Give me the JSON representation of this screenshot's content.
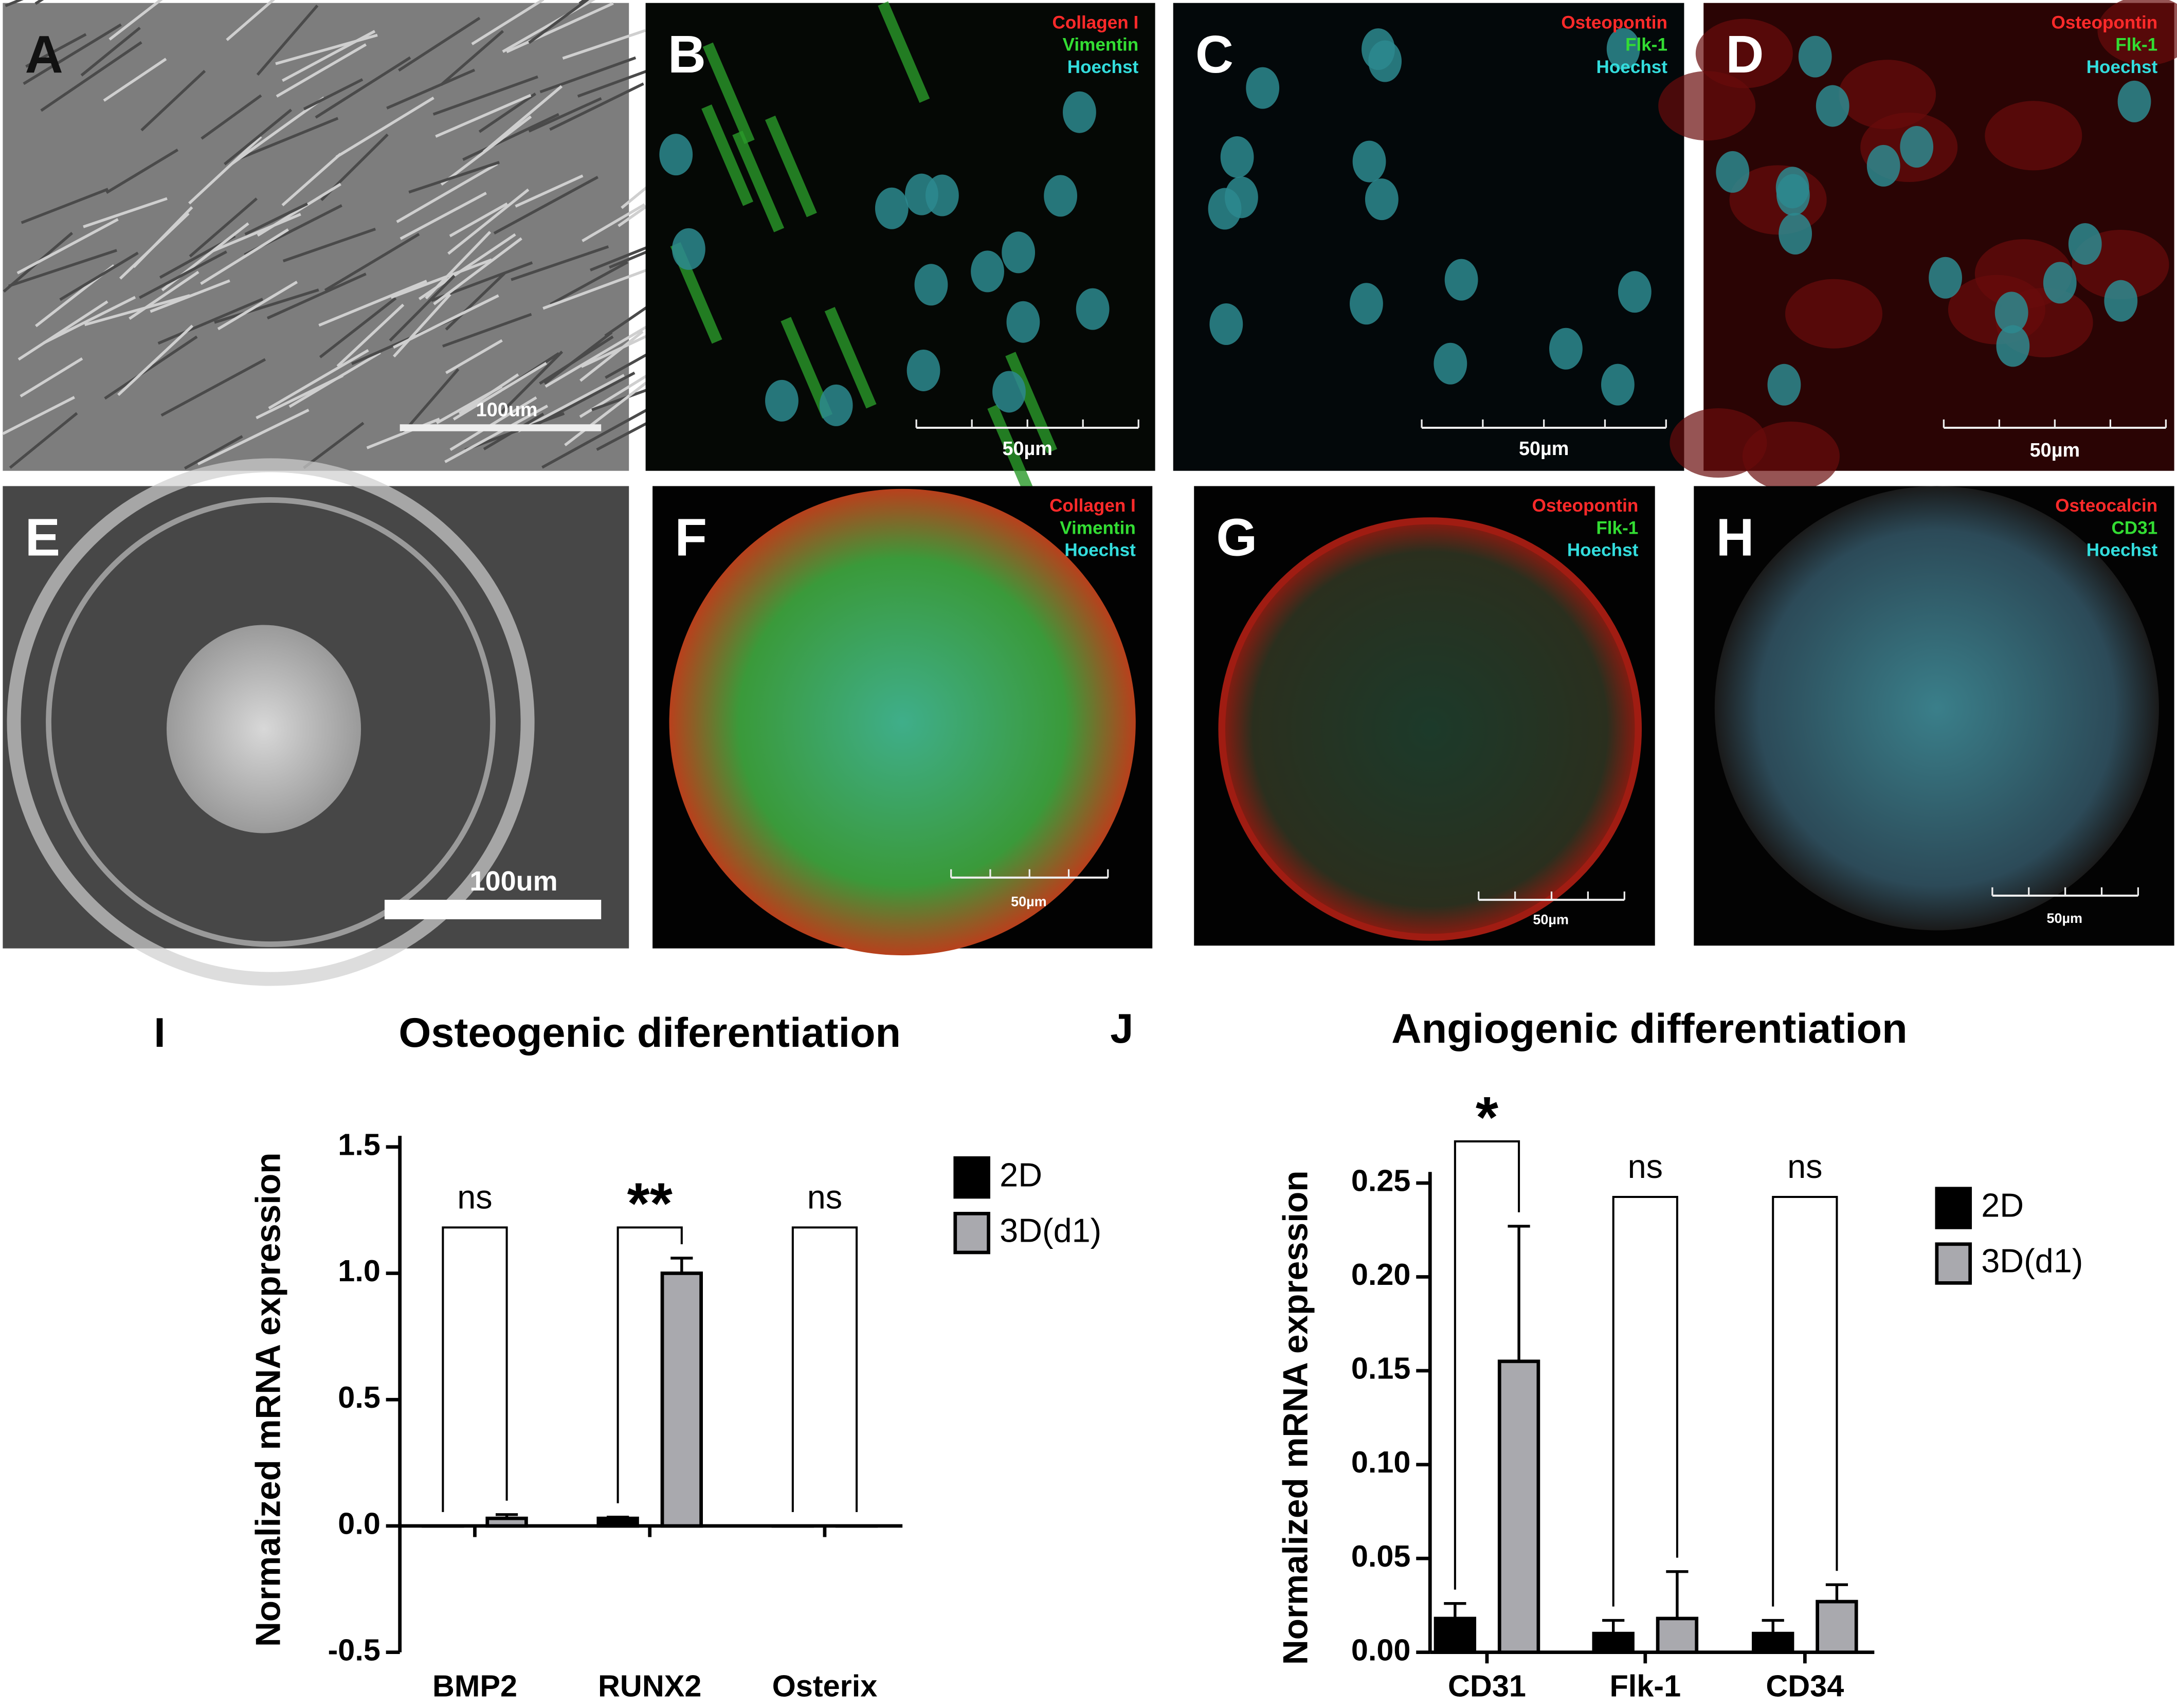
{
  "panels": [
    {
      "letter": "A",
      "scale_bar": "100um"
    },
    {
      "letter": "B",
      "stains": [
        "Collagen I",
        "Vimentin",
        "Hoechst"
      ],
      "scale_bar": "50µm"
    },
    {
      "letter": "C",
      "stains": [
        "Osteopontin",
        "Flk-1",
        "Hoechst"
      ],
      "scale_bar": "50µm"
    },
    {
      "letter": "D",
      "stains": [
        "Osteopontin",
        "Flk-1",
        "Hoechst"
      ],
      "scale_bar": "50µm"
    },
    {
      "letter": "E",
      "scale_bar": "100um"
    },
    {
      "letter": "F",
      "stains": [
        "Collagen I",
        "Vimentin",
        "Hoechst"
      ],
      "scale_bar": "50µm"
    },
    {
      "letter": "G",
      "stains": [
        "Osteopontin",
        "Flk-1",
        "Hoechst"
      ],
      "scale_bar": "50µm"
    },
    {
      "letter": "H",
      "stains": [
        "Osteocalcin",
        "CD31",
        "Hoechst"
      ],
      "scale_bar": "50µm"
    }
  ],
  "chart_data": [
    {
      "type": "bar",
      "panel_letter": "I",
      "title": "Osteogenic diferentiation",
      "y_label": "Normalized mRNA  expression",
      "categories": [
        "BMP2",
        "RUNX2",
        "Osterix"
      ],
      "series": [
        {
          "name": "2D",
          "color": "#000000",
          "values": [
            0,
            0.03,
            0
          ],
          "errors": [
            0,
            0.005,
            0
          ]
        },
        {
          "name": "3D(d1)",
          "color": "#a9a9ae",
          "values": [
            0.03,
            1.0,
            0
          ],
          "errors": [
            0.015,
            0.06,
            0
          ]
        }
      ],
      "significance": [
        "ns",
        "**",
        "ns"
      ],
      "ylim": [
        -0.5,
        1.5
      ],
      "yticks": [
        {
          "value": -0.5,
          "label": "-0.5"
        },
        {
          "value": 0,
          "label": "0.0"
        },
        {
          "value": 0.5,
          "label": "0.5"
        },
        {
          "value": 1,
          "label": "1.0"
        },
        {
          "value": 1.5,
          "label": "1.5"
        }
      ]
    },
    {
      "type": "bar",
      "panel_letter": "J",
      "title": "Angiogenic differentiation",
      "y_label": "Normalized mRNA  expression",
      "categories": [
        "CD31",
        "Flk-1",
        "CD34"
      ],
      "series": [
        {
          "name": "2D",
          "color": "#000000",
          "values": [
            0.018,
            0.01,
            0.01
          ],
          "errors": [
            0.008,
            0.007,
            0.007
          ]
        },
        {
          "name": "3D(d1)",
          "color": "#a9a9ae",
          "values": [
            0.155,
            0.018,
            0.027
          ],
          "errors": [
            0.072,
            0.025,
            0.009
          ]
        }
      ],
      "significance": [
        "*",
        "ns",
        "ns"
      ],
      "ylim": [
        0,
        0.25
      ],
      "yticks": [
        {
          "value": 0,
          "label": "0.00"
        },
        {
          "value": 0.05,
          "label": "0.05"
        },
        {
          "value": 0.1,
          "label": "0.10"
        },
        {
          "value": 0.15,
          "label": "0.15"
        },
        {
          "value": 0.2,
          "label": "0.20"
        },
        {
          "value": 0.25,
          "label": "0.25"
        }
      ]
    }
  ]
}
